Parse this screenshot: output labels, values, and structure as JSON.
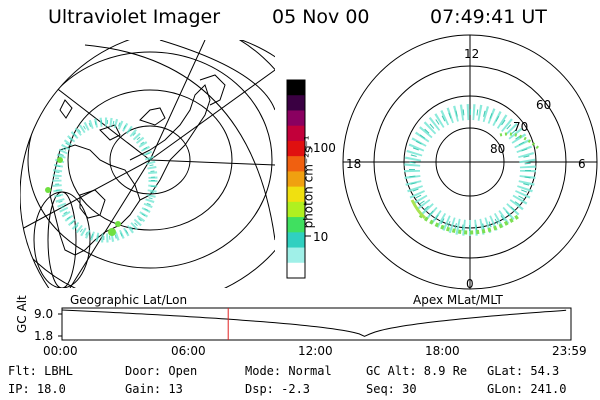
{
  "header": {
    "title": "Ultraviolet Imager",
    "date": "05 Nov 00",
    "time": "07:49:41 UT"
  },
  "colorbar": {
    "unit": "photon cm⁻²s⁻¹",
    "ticks": [
      "100",
      "10"
    ],
    "colors": [
      "#000000",
      "#3a0042",
      "#8a0060",
      "#c2003a",
      "#e01010",
      "#f06010",
      "#f0a010",
      "#f0e010",
      "#b0f020",
      "#40e060",
      "#30d0c0",
      "#a0f0e8",
      "#ffffff"
    ]
  },
  "left_map": {
    "caption": "Geographic Lat/Lon"
  },
  "right_map": {
    "caption": "Apex MLat/MLT",
    "mlt_labels": {
      "top": "12",
      "left": "18",
      "right": "6",
      "bottom": "0"
    },
    "lat_labels": [
      "60",
      "70",
      "80"
    ]
  },
  "gc_plot": {
    "ylabel": "GC Alt",
    "yticks": [
      "9.0",
      "1.8"
    ],
    "xticks": [
      "00:00",
      "06:00",
      "12:00",
      "18:00",
      "23:59"
    ],
    "marker_time_hours": 7.83,
    "marker_color": "#e02020",
    "min_time_hours": 14.3
  },
  "status": {
    "flt": "Flt: LBHL",
    "ip": "IP: 18.0",
    "door": "Door: Open",
    "gain": "Gain: 13",
    "mode": "Mode: Normal",
    "dsp": "Dsp:   -2.3",
    "gcalt": "GC Alt: 8.9 Re",
    "seq": "Seq: 30",
    "glat": "GLat:  54.3",
    "glon": "GLon: 241.0"
  }
}
